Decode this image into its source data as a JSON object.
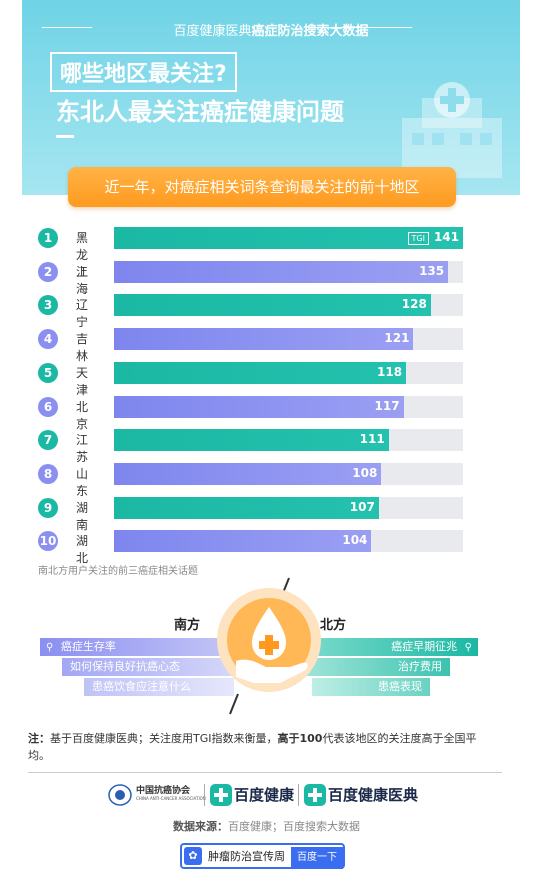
{
  "header": {
    "brand_left": "百度健康医典",
    "brand_right": "癌症防治搜索大数据",
    "question": "哪些地区最关注?",
    "headline": "东北人最关注癌症健康问题",
    "subtitle": "近一年，对癌症相关词条查询最关注的前十地区"
  },
  "chart_data": {
    "type": "bar",
    "orientation": "horizontal",
    "categories": [
      "黑龙江",
      "上海",
      "辽宁",
      "吉林",
      "天津",
      "北京",
      "江苏",
      "山东",
      "湖南",
      "湖北"
    ],
    "ranks": [
      "1",
      "2",
      "3",
      "4",
      "5",
      "6",
      "7",
      "8",
      "9",
      "10"
    ],
    "values": [
      141,
      135,
      128,
      121,
      118,
      117,
      111,
      108,
      107,
      104
    ],
    "value_labels": [
      "141",
      "135",
      "128",
      "121",
      "118",
      "117",
      "111",
      "108",
      "107",
      "104"
    ],
    "tgi_tag": "TGI",
    "xlim": [
      0,
      141
    ],
    "colors": {
      "teal": "#1bb8a4",
      "purple": "#8b8ff0",
      "track": "#e9eaee"
    }
  },
  "comparison": {
    "title": "南北方用户关注的前三癌症相关话题",
    "south_label": "南方",
    "north_label": "北方",
    "south_topics": [
      "癌症生存率",
      "如何保持良好抗癌心态",
      "患癌饮食应注意什么"
    ],
    "north_topics": [
      "癌症早期征兆",
      "治疗费用",
      "患癌表现"
    ]
  },
  "note": {
    "prefix": "注：",
    "text1": "基于百度健康医典；关注度用TGI指数来衡量，",
    "bold": "高于100",
    "text2": "代表该地区的关注度高于全国平均。"
  },
  "logos": {
    "caa_cn": "中国抗癌协会",
    "caa_en": "CHINA ANTI-CANCER ASSOCIATION",
    "baidu_health": "百度健康",
    "baidu_health_dict": "百度健康医典"
  },
  "source": {
    "label": "数据来源：",
    "text": "百度健康；百度搜索大数据"
  },
  "badge": {
    "text": "肿瘤防治宣传周",
    "button": "百度一下"
  }
}
